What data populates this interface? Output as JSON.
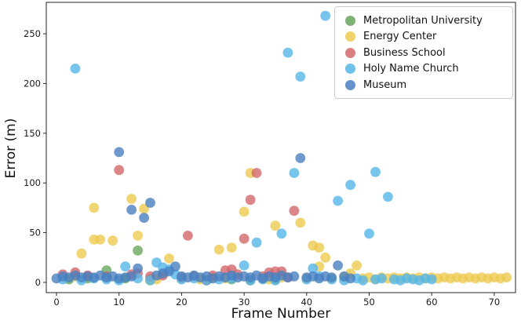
{
  "chart_data": {
    "type": "scatter",
    "title": "",
    "xlabel": "Frame Number",
    "ylabel": "Error (m)",
    "xlim": [
      -1.63,
      73.4
    ],
    "ylim": [
      -10.3,
      281.6
    ],
    "xticks": [
      0,
      10,
      20,
      30,
      40,
      50,
      60,
      70
    ],
    "yticks": [
      0,
      50,
      100,
      150,
      200,
      250
    ],
    "grid": false,
    "legend_position": "upper right",
    "marker_opacity": 0.8,
    "series": [
      {
        "name": "Metropolitan University",
        "color": "#69a65d",
        "points": [
          [
            2,
            3
          ],
          [
            5,
            4
          ],
          [
            8,
            12
          ],
          [
            11,
            4
          ],
          [
            13,
            32
          ],
          [
            15,
            3
          ],
          [
            20,
            4
          ],
          [
            24,
            2
          ],
          [
            28,
            3
          ],
          [
            31,
            2
          ],
          [
            35,
            3
          ]
        ]
      },
      {
        "name": "Energy Center",
        "color": "#edcb50",
        "points": [
          [
            3,
            6
          ],
          [
            4,
            29
          ],
          [
            6,
            75
          ],
          [
            6,
            43
          ],
          [
            7,
            43
          ],
          [
            9,
            42
          ],
          [
            12,
            84
          ],
          [
            13,
            47
          ],
          [
            14,
            74
          ],
          [
            15,
            2
          ],
          [
            16,
            3
          ],
          [
            18,
            24
          ],
          [
            20,
            4
          ],
          [
            23,
            3
          ],
          [
            25,
            5
          ],
          [
            26,
            33
          ],
          [
            27,
            4
          ],
          [
            28,
            35
          ],
          [
            30,
            71
          ],
          [
            31,
            110
          ],
          [
            33,
            4
          ],
          [
            34,
            3
          ],
          [
            35,
            57
          ],
          [
            36,
            5
          ],
          [
            39,
            60
          ],
          [
            40,
            4
          ],
          [
            41,
            37
          ],
          [
            42,
            35
          ],
          [
            42,
            16
          ],
          [
            43,
            25
          ],
          [
            44,
            4
          ],
          [
            46,
            5
          ],
          [
            47,
            9
          ],
          [
            48,
            17
          ],
          [
            49,
            4
          ],
          [
            50,
            5
          ],
          [
            51,
            3
          ],
          [
            52,
            5
          ],
          [
            53,
            4
          ],
          [
            54,
            5
          ],
          [
            55,
            4
          ],
          [
            56,
            5
          ],
          [
            57,
            4
          ],
          [
            58,
            5
          ],
          [
            59,
            4
          ],
          [
            60,
            5
          ],
          [
            61,
            4
          ],
          [
            62,
            5
          ],
          [
            63,
            4
          ],
          [
            64,
            5
          ],
          [
            65,
            4
          ],
          [
            66,
            5
          ],
          [
            67,
            4
          ],
          [
            68,
            5
          ],
          [
            69,
            4
          ],
          [
            70,
            5
          ],
          [
            71,
            4
          ],
          [
            72,
            5
          ]
        ]
      },
      {
        "name": "Business School",
        "color": "#d2686c",
        "points": [
          [
            1,
            8
          ],
          [
            3,
            10
          ],
          [
            5,
            7
          ],
          [
            8,
            6
          ],
          [
            10,
            113
          ],
          [
            12,
            8
          ],
          [
            13,
            9
          ],
          [
            15,
            6
          ],
          [
            17,
            7
          ],
          [
            20,
            5
          ],
          [
            21,
            47
          ],
          [
            22,
            6
          ],
          [
            24,
            2
          ],
          [
            25,
            7
          ],
          [
            27,
            12
          ],
          [
            28,
            13
          ],
          [
            29,
            8
          ],
          [
            30,
            44
          ],
          [
            31,
            83
          ],
          [
            32,
            110
          ],
          [
            33,
            6
          ],
          [
            34,
            10
          ],
          [
            35,
            11
          ],
          [
            36,
            11
          ],
          [
            37,
            5
          ],
          [
            38,
            72
          ]
        ]
      },
      {
        "name": "Holy Name Church",
        "color": "#55b6e8",
        "points": [
          [
            1,
            3
          ],
          [
            3,
            215
          ],
          [
            4,
            2
          ],
          [
            6,
            4
          ],
          [
            8,
            3
          ],
          [
            10,
            2
          ],
          [
            11,
            16
          ],
          [
            13,
            4
          ],
          [
            15,
            2
          ],
          [
            16,
            20
          ],
          [
            17,
            15
          ],
          [
            18,
            13
          ],
          [
            19,
            8
          ],
          [
            20,
            3
          ],
          [
            22,
            4
          ],
          [
            24,
            2
          ],
          [
            26,
            3
          ],
          [
            28,
            4
          ],
          [
            30,
            17
          ],
          [
            31,
            2
          ],
          [
            32,
            40
          ],
          [
            33,
            3
          ],
          [
            35,
            2
          ],
          [
            36,
            49
          ],
          [
            37,
            231
          ],
          [
            38,
            110
          ],
          [
            39,
            207
          ],
          [
            40,
            3
          ],
          [
            41,
            14
          ],
          [
            42,
            6
          ],
          [
            43,
            268
          ],
          [
            44,
            3
          ],
          [
            45,
            82
          ],
          [
            46,
            2
          ],
          [
            47,
            98
          ],
          [
            48,
            4
          ],
          [
            49,
            2
          ],
          [
            50,
            49
          ],
          [
            51,
            111
          ],
          [
            51,
            3
          ],
          [
            52,
            4
          ],
          [
            53,
            86
          ],
          [
            54,
            3
          ],
          [
            55,
            2
          ],
          [
            56,
            4
          ],
          [
            57,
            3
          ],
          [
            58,
            2
          ],
          [
            59,
            4
          ],
          [
            60,
            3
          ]
        ]
      },
      {
        "name": "Museum",
        "color": "#4a7fc1",
        "points": [
          [
            0,
            4
          ],
          [
            1,
            6
          ],
          [
            2,
            5
          ],
          [
            3,
            7
          ],
          [
            4,
            5
          ],
          [
            5,
            6
          ],
          [
            6,
            5
          ],
          [
            7,
            7
          ],
          [
            8,
            5
          ],
          [
            9,
            6
          ],
          [
            10,
            131
          ],
          [
            10,
            4
          ],
          [
            11,
            5
          ],
          [
            12,
            73
          ],
          [
            12,
            6
          ],
          [
            13,
            14
          ],
          [
            14,
            65
          ],
          [
            15,
            80
          ],
          [
            16,
            7
          ],
          [
            17,
            9
          ],
          [
            18,
            11
          ],
          [
            19,
            16
          ],
          [
            20,
            6
          ],
          [
            21,
            5
          ],
          [
            22,
            7
          ],
          [
            23,
            5
          ],
          [
            24,
            6
          ],
          [
            25,
            4
          ],
          [
            26,
            6
          ],
          [
            27,
            5
          ],
          [
            28,
            7
          ],
          [
            29,
            5
          ],
          [
            30,
            6
          ],
          [
            31,
            5
          ],
          [
            32,
            7
          ],
          [
            33,
            4
          ],
          [
            34,
            6
          ],
          [
            35,
            5
          ],
          [
            36,
            7
          ],
          [
            37,
            5
          ],
          [
            38,
            6
          ],
          [
            39,
            125
          ],
          [
            40,
            5
          ],
          [
            41,
            6
          ],
          [
            42,
            4
          ],
          [
            43,
            6
          ],
          [
            44,
            5
          ],
          [
            45,
            17
          ],
          [
            46,
            6
          ],
          [
            47,
            4
          ]
        ]
      }
    ],
    "axis_color": "#262626",
    "tick_label_color": "#1a1a1a"
  }
}
